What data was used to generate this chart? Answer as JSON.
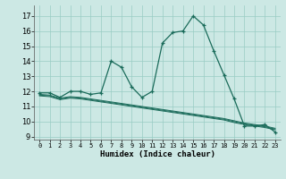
{
  "xlabel": "Humidex (Indice chaleur)",
  "bg_color": "#cce8e4",
  "grid_color": "#99ccc4",
  "line_color": "#1a6b5a",
  "xlim": [
    -0.5,
    23.5
  ],
  "ylim": [
    8.8,
    17.7
  ],
  "yticks": [
    9,
    10,
    11,
    12,
    13,
    14,
    15,
    16,
    17
  ],
  "xticks": [
    0,
    1,
    2,
    3,
    4,
    5,
    6,
    7,
    8,
    9,
    10,
    11,
    12,
    13,
    14,
    15,
    16,
    17,
    18,
    19,
    20,
    21,
    22,
    23
  ],
  "curve1_x": [
    0,
    1,
    2,
    3,
    4,
    5,
    6,
    7,
    8,
    9,
    10,
    11,
    12,
    13,
    14,
    15,
    16,
    17,
    18,
    19,
    20,
    21,
    22,
    23
  ],
  "curve1_y": [
    11.9,
    11.9,
    11.6,
    12.0,
    12.0,
    11.8,
    11.9,
    14.0,
    13.6,
    12.3,
    11.6,
    12.0,
    15.2,
    15.9,
    16.0,
    17.0,
    16.4,
    14.7,
    13.1,
    11.5,
    9.7,
    9.7,
    9.8,
    9.3
  ],
  "curve2_x": [
    0,
    1,
    2,
    3,
    4,
    5,
    6,
    7,
    8,
    9,
    10,
    11,
    12,
    13,
    14,
    15,
    16,
    17,
    18,
    19,
    20,
    21,
    22,
    23
  ],
  "curve2_y": [
    11.8,
    11.75,
    11.55,
    11.65,
    11.6,
    11.5,
    11.4,
    11.3,
    11.2,
    11.1,
    11.0,
    10.9,
    10.8,
    10.7,
    10.6,
    10.5,
    10.4,
    10.3,
    10.2,
    10.05,
    9.9,
    9.8,
    9.7,
    9.55
  ],
  "curve3_x": [
    0,
    1,
    2,
    3,
    4,
    5,
    6,
    7,
    8,
    9,
    10,
    11,
    12,
    13,
    14,
    15,
    16,
    17,
    18,
    19,
    20,
    21,
    22,
    23
  ],
  "curve3_y": [
    11.75,
    11.7,
    11.5,
    11.6,
    11.55,
    11.45,
    11.35,
    11.25,
    11.15,
    11.05,
    10.95,
    10.85,
    10.75,
    10.65,
    10.55,
    10.45,
    10.35,
    10.25,
    10.15,
    9.99,
    9.85,
    9.75,
    9.65,
    9.5
  ],
  "curve4_x": [
    0,
    1,
    2,
    3,
    4,
    5,
    6,
    7,
    8,
    9,
    10,
    11,
    12,
    13,
    14,
    15,
    16,
    17,
    18,
    19,
    20,
    21,
    22,
    23
  ],
  "curve4_y": [
    11.7,
    11.65,
    11.45,
    11.55,
    11.5,
    11.4,
    11.3,
    11.2,
    11.1,
    11.0,
    10.9,
    10.8,
    10.7,
    10.6,
    10.5,
    10.4,
    10.3,
    10.2,
    10.1,
    9.93,
    9.8,
    9.7,
    9.6,
    9.45
  ]
}
